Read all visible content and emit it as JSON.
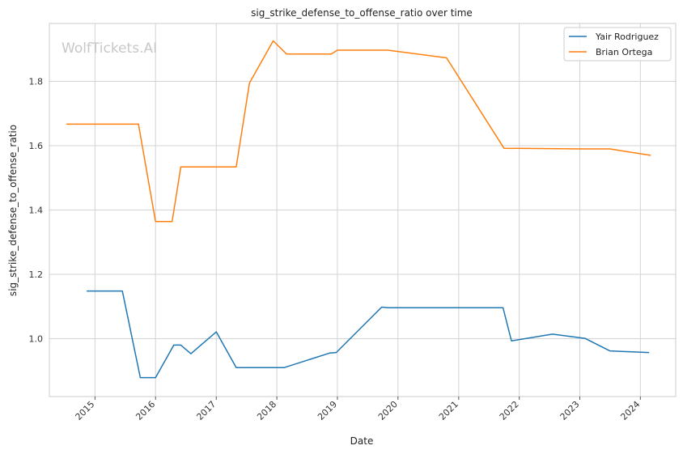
{
  "watermark": "WolfTickets.AI",
  "chart_data": {
    "type": "line",
    "title": "sig_strike_defense_to_offense_ratio over time",
    "xlabel": "Date",
    "ylabel": "sig_strike_defense_to_offense_ratio",
    "x_type": "date",
    "xlim": [
      "2014-04-01",
      "2024-08-01"
    ],
    "ylim": [
      0.82,
      1.98
    ],
    "x_ticks": [
      {
        "date": "2015-01-01",
        "label": "2015"
      },
      {
        "date": "2016-01-01",
        "label": "2016"
      },
      {
        "date": "2017-01-01",
        "label": "2017"
      },
      {
        "date": "2018-01-01",
        "label": "2018"
      },
      {
        "date": "2019-01-01",
        "label": "2019"
      },
      {
        "date": "2020-01-01",
        "label": "2020"
      },
      {
        "date": "2021-01-01",
        "label": "2021"
      },
      {
        "date": "2022-01-01",
        "label": "2022"
      },
      {
        "date": "2023-01-01",
        "label": "2023"
      },
      {
        "date": "2024-01-01",
        "label": "2024"
      }
    ],
    "y_ticks": [
      {
        "value": 1.0,
        "label": "1.0"
      },
      {
        "value": 1.2,
        "label": "1.2"
      },
      {
        "value": 1.4,
        "label": "1.4"
      },
      {
        "value": 1.6,
        "label": "1.6"
      },
      {
        "value": 1.8,
        "label": "1.8"
      }
    ],
    "grid": true,
    "legend_position": "top-right",
    "series": [
      {
        "name": "Yair Rodriguez",
        "color": "#1f77b4",
        "points": [
          {
            "x": "2014-11-15",
            "y": 1.148
          },
          {
            "x": "2015-06-15",
            "y": 1.148
          },
          {
            "x": "2015-10-01",
            "y": 0.879
          },
          {
            "x": "2016-01-01",
            "y": 0.879
          },
          {
            "x": "2016-04-20",
            "y": 0.98
          },
          {
            "x": "2016-06-01",
            "y": 0.98
          },
          {
            "x": "2016-08-01",
            "y": 0.953
          },
          {
            "x": "2017-01-01",
            "y": 1.021
          },
          {
            "x": "2017-05-01",
            "y": 0.91
          },
          {
            "x": "2018-02-15",
            "y": 0.91
          },
          {
            "x": "2018-11-15",
            "y": 0.955
          },
          {
            "x": "2018-12-25",
            "y": 0.957
          },
          {
            "x": "2019-09-25",
            "y": 1.098
          },
          {
            "x": "2019-11-01",
            "y": 1.096
          },
          {
            "x": "2021-09-25",
            "y": 1.096
          },
          {
            "x": "2021-11-15",
            "y": 0.993
          },
          {
            "x": "2022-07-20",
            "y": 1.014
          },
          {
            "x": "2023-02-01",
            "y": 1.001
          },
          {
            "x": "2023-07-01",
            "y": 0.962
          },
          {
            "x": "2024-02-20",
            "y": 0.957
          }
        ]
      },
      {
        "name": "Brian Ortega",
        "color": "#ff7f0e",
        "points": [
          {
            "x": "2014-07-15",
            "y": 1.667
          },
          {
            "x": "2015-09-20",
            "y": 1.667
          },
          {
            "x": "2016-01-01",
            "y": 1.364
          },
          {
            "x": "2016-04-10",
            "y": 1.364
          },
          {
            "x": "2016-06-01",
            "y": 1.534
          },
          {
            "x": "2017-05-01",
            "y": 1.534
          },
          {
            "x": "2017-07-20",
            "y": 1.795
          },
          {
            "x": "2017-12-10",
            "y": 1.926
          },
          {
            "x": "2018-03-01",
            "y": 1.885
          },
          {
            "x": "2018-11-25",
            "y": 1.885
          },
          {
            "x": "2019-01-01",
            "y": 1.897
          },
          {
            "x": "2019-11-01",
            "y": 1.897
          },
          {
            "x": "2020-10-20",
            "y": 1.873
          },
          {
            "x": "2021-10-01",
            "y": 1.592
          },
          {
            "x": "2023-01-01",
            "y": 1.59
          },
          {
            "x": "2023-07-01",
            "y": 1.59
          },
          {
            "x": "2024-03-01",
            "y": 1.57
          }
        ]
      }
    ]
  }
}
